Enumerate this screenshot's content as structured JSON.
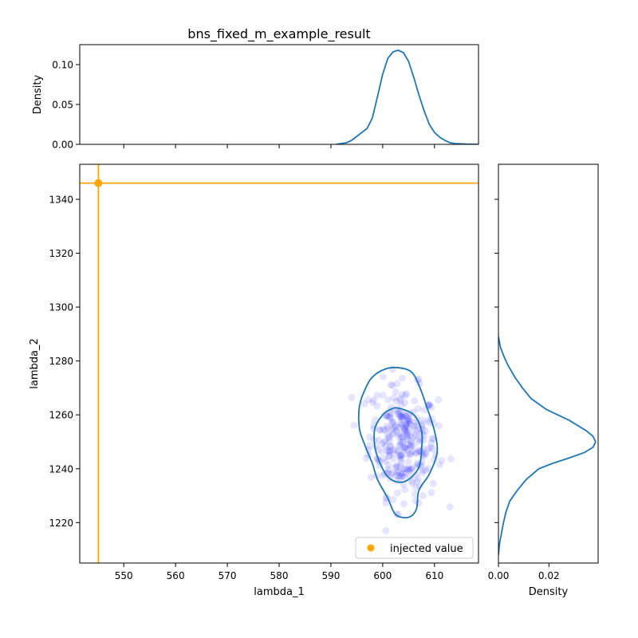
{
  "chart_data": [
    {
      "panel": "joint",
      "type": "scatter",
      "title": "bns_fixed_m_example_result",
      "xlabel": "lambda_1",
      "ylabel": "lambda_2",
      "xlim": [
        541.5,
        618.5
      ],
      "ylim": [
        1205,
        1353
      ],
      "xticks": [
        550,
        560,
        570,
        580,
        590,
        600,
        610
      ],
      "yticks": [
        1220,
        1240,
        1260,
        1280,
        1300,
        1320,
        1340
      ],
      "grid": false,
      "legend": {
        "location": "lower-right",
        "entries": [
          "injected value"
        ]
      },
      "injected": {
        "x": 545.1,
        "y": 1346.0,
        "label": "injected value",
        "color": "#ffa500"
      },
      "samples": {
        "color": "#0000ff",
        "opacity": 0.1,
        "center": [
          604.0,
          1250.0
        ],
        "spread": [
          3.3,
          10.5
        ],
        "correlation": -0.12,
        "count": 300,
        "x_range": [
          594,
          614
        ],
        "y_range": [
          1217,
          1281
        ]
      },
      "contours": [
        {
          "level": "outer",
          "color": "#1f77b4",
          "points": [
            [
              603,
              1277.5
            ],
            [
              605.5,
              1276
            ],
            [
              607,
              1271
            ],
            [
              608.5,
              1263
            ],
            [
              610,
              1254
            ],
            [
              610.5,
              1246
            ],
            [
              609,
              1238
            ],
            [
              607,
              1232
            ],
            [
              606.5,
              1225
            ],
            [
              605,
              1222
            ],
            [
              602.5,
              1223
            ],
            [
              601,
              1229
            ],
            [
              599,
              1236
            ],
            [
              598,
              1242
            ],
            [
              596.5,
              1249
            ],
            [
              595.5,
              1255
            ],
            [
              595.5,
              1263
            ],
            [
              596.5,
              1269
            ],
            [
              598,
              1274
            ],
            [
              600.5,
              1277
            ]
          ]
        },
        {
          "level": "inner",
          "color": "#1f77b4",
          "points": [
            [
              603,
              1262.5
            ],
            [
              606,
              1260
            ],
            [
              607.5,
              1254
            ],
            [
              607.5,
              1247
            ],
            [
              607,
              1240.5
            ],
            [
              605,
              1236
            ],
            [
              603,
              1235
            ],
            [
              601,
              1237
            ],
            [
              599.5,
              1242
            ],
            [
              598.5,
              1248
            ],
            [
              598.5,
              1255
            ],
            [
              600,
              1260
            ],
            [
              601.5,
              1262
            ]
          ]
        }
      ]
    },
    {
      "panel": "top-marginal",
      "type": "line",
      "ylabel": "Density",
      "xlim": [
        541.5,
        618.5
      ],
      "ylim": [
        0,
        0.125
      ],
      "yticks": [
        0.0,
        0.05,
        0.1
      ],
      "ytick_labels": [
        "0.00",
        "0.05",
        "0.10"
      ],
      "color": "#1f77b4",
      "x": [
        591,
        593,
        594,
        595,
        596,
        597,
        598,
        599,
        600,
        601,
        602,
        603,
        604,
        605,
        606,
        607,
        608,
        609,
        610,
        611,
        612,
        613,
        614,
        616,
        618.5
      ],
      "y": [
        0,
        0.002,
        0.005,
        0.01,
        0.015,
        0.02,
        0.033,
        0.06,
        0.088,
        0.108,
        0.116,
        0.118,
        0.115,
        0.104,
        0.084,
        0.062,
        0.042,
        0.025,
        0.015,
        0.009,
        0.005,
        0.002,
        0.001,
        0.0003,
        0
      ]
    },
    {
      "panel": "right-marginal",
      "type": "line",
      "xlabel": "Density",
      "xlim": [
        0,
        0.0395
      ],
      "ylim": [
        1205,
        1353
      ],
      "xticks": [
        0.0,
        0.02
      ],
      "xtick_labels": [
        "0.00",
        "0.02"
      ],
      "color": "#1f77b4",
      "y": [
        1289,
        1285,
        1281,
        1278,
        1274,
        1270,
        1266,
        1262,
        1258,
        1254,
        1252,
        1250,
        1248,
        1246,
        1244,
        1242,
        1240,
        1236,
        1232,
        1228,
        1224,
        1220,
        1216,
        1212,
        1208
      ],
      "x": [
        0,
        0.0008,
        0.0025,
        0.004,
        0.0065,
        0.0095,
        0.013,
        0.019,
        0.028,
        0.035,
        0.0375,
        0.0385,
        0.0375,
        0.034,
        0.028,
        0.0215,
        0.016,
        0.011,
        0.0075,
        0.0045,
        0.003,
        0.002,
        0.0012,
        0.0004,
        0
      ]
    }
  ]
}
